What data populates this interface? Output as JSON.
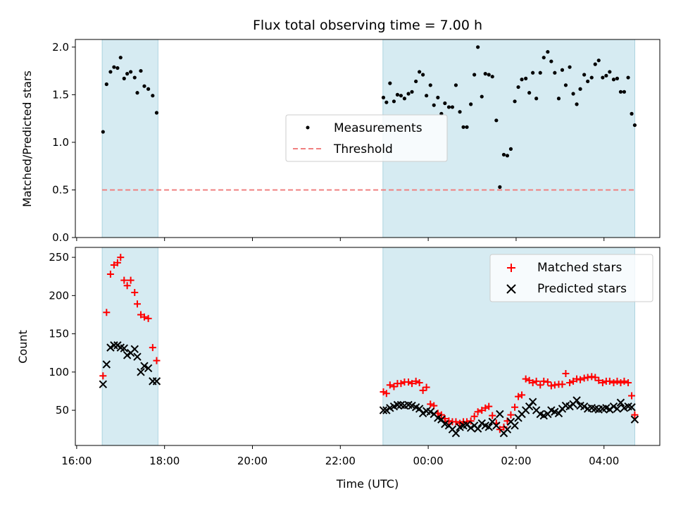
{
  "chart_data": [
    {
      "type": "scatter",
      "title": "Flux total observing time = 7.00 h",
      "ylabel": "Matched/Predicted stars",
      "xlabel": "",
      "xlim": [
        15.97,
        29.27
      ],
      "ylim": [
        0.0,
        2.08
      ],
      "yticks": [
        "0.0",
        "0.5",
        "1.0",
        "1.5",
        "2.0"
      ],
      "shaded_intervals": [
        [
          16.58,
          17.85
        ],
        [
          22.97,
          28.7
        ]
      ],
      "threshold": 0.5,
      "legend": {
        "placement": "center",
        "entries": [
          "Measurements",
          "Threshold"
        ]
      },
      "series": [
        {
          "name": "Measurements",
          "marker": "dot",
          "color": "#000000",
          "x": [
            16.6,
            16.68,
            16.77,
            16.85,
            16.93,
            17.0,
            17.08,
            17.15,
            17.23,
            17.32,
            17.38,
            17.46,
            17.54,
            17.63,
            17.73,
            17.82,
            22.98,
            23.05,
            23.13,
            23.22,
            23.3,
            23.38,
            23.46,
            23.55,
            23.63,
            23.72,
            23.8,
            23.88,
            23.96,
            24.05,
            24.13,
            24.22,
            24.3,
            24.38,
            24.47,
            24.55,
            24.63,
            24.72,
            24.8,
            24.88,
            24.97,
            25.05,
            25.13,
            25.22,
            25.3,
            25.38,
            25.46,
            25.55,
            25.63,
            25.72,
            25.8,
            25.88,
            25.97,
            26.05,
            26.13,
            26.22,
            26.3,
            26.38,
            26.46,
            26.55,
            26.63,
            26.72,
            26.8,
            26.88,
            26.97,
            27.05,
            27.13,
            27.22,
            27.3,
            27.38,
            27.46,
            27.55,
            27.63,
            27.72,
            27.8,
            27.88,
            27.97,
            28.05,
            28.13,
            28.22,
            28.3,
            28.38,
            28.46,
            28.55,
            28.63,
            28.7
          ],
          "y": [
            1.11,
            1.61,
            1.74,
            1.79,
            1.78,
            1.89,
            1.67,
            1.72,
            1.74,
            1.68,
            1.52,
            1.75,
            1.59,
            1.56,
            1.49,
            1.31,
            1.47,
            1.42,
            1.62,
            1.43,
            1.5,
            1.49,
            1.46,
            1.51,
            1.53,
            1.64,
            1.74,
            1.71,
            1.49,
            1.6,
            1.39,
            1.47,
            1.3,
            1.41,
            1.37,
            1.37,
            1.6,
            1.32,
            1.16,
            1.16,
            1.4,
            1.71,
            2.0,
            1.48,
            1.72,
            1.71,
            1.69,
            1.23,
            0.53,
            0.87,
            0.86,
            0.93,
            1.43,
            1.58,
            1.66,
            1.67,
            1.52,
            1.73,
            1.46,
            1.73,
            1.89,
            1.95,
            1.85,
            1.73,
            1.46,
            1.76,
            1.6,
            1.79,
            1.51,
            1.4,
            1.56,
            1.71,
            1.64,
            1.68,
            1.82,
            1.86,
            1.68,
            1.7,
            1.74,
            1.66,
            1.67,
            1.53,
            1.53,
            1.68,
            1.3,
            1.18
          ]
        },
        {
          "name": "Threshold",
          "style": "dashed",
          "color": "#f08080",
          "x": [
            16.58,
            28.7
          ],
          "y": [
            0.5,
            0.5
          ]
        }
      ]
    },
    {
      "type": "scatter",
      "title": "",
      "xlabel": "Time (UTC)",
      "ylabel": "Count",
      "xlim": [
        15.97,
        29.27
      ],
      "ylim": [
        4,
        263
      ],
      "xticks": [
        "16:00",
        "18:00",
        "20:00",
        "22:00",
        "00:00",
        "02:00",
        "04:00"
      ],
      "yticks": [
        "50",
        "100",
        "150",
        "200",
        "250"
      ],
      "shaded_intervals": [
        [
          16.58,
          17.85
        ],
        [
          22.97,
          28.7
        ]
      ],
      "legend": {
        "placement": "top-right",
        "entries": [
          "Matched stars",
          "Predicted stars"
        ]
      },
      "series": [
        {
          "name": "Matched stars",
          "marker": "plus",
          "color": "#ff0000",
          "x": [
            16.6,
            16.68,
            16.77,
            16.85,
            16.93,
            17.0,
            17.08,
            17.15,
            17.23,
            17.32,
            17.38,
            17.46,
            17.54,
            17.63,
            17.73,
            17.82,
            22.98,
            23.05,
            23.13,
            23.22,
            23.3,
            23.38,
            23.46,
            23.55,
            23.63,
            23.72,
            23.8,
            23.88,
            23.96,
            24.05,
            24.13,
            24.22,
            24.3,
            24.38,
            24.47,
            24.55,
            24.63,
            24.72,
            24.8,
            24.88,
            24.97,
            25.05,
            25.13,
            25.22,
            25.3,
            25.38,
            25.46,
            25.55,
            25.63,
            25.72,
            25.8,
            25.88,
            25.97,
            26.05,
            26.13,
            26.22,
            26.3,
            26.38,
            26.46,
            26.55,
            26.63,
            26.72,
            26.8,
            26.88,
            26.97,
            27.05,
            27.13,
            27.22,
            27.3,
            27.38,
            27.46,
            27.55,
            27.63,
            27.72,
            27.8,
            27.88,
            27.97,
            28.05,
            28.13,
            28.22,
            28.3,
            28.38,
            28.46,
            28.55,
            28.63,
            28.7
          ],
          "y": [
            95,
            178,
            228,
            240,
            243,
            250,
            220,
            213,
            220,
            204,
            189,
            175,
            172,
            170,
            132,
            115,
            74,
            72,
            83,
            81,
            85,
            85,
            87,
            87,
            85,
            88,
            86,
            76,
            80,
            58,
            56,
            46,
            44,
            39,
            36,
            35,
            35,
            33,
            35,
            35,
            36,
            42,
            48,
            50,
            53,
            55,
            43,
            33,
            25,
            28,
            36,
            44,
            54,
            68,
            70,
            91,
            89,
            86,
            88,
            83,
            88,
            87,
            82,
            83,
            84,
            84,
            98,
            86,
            88,
            91,
            90,
            92,
            93,
            94,
            93,
            89,
            86,
            88,
            88,
            86,
            88,
            86,
            88,
            86,
            69,
            44
          ]
        },
        {
          "name": "Predicted stars",
          "marker": "x",
          "color": "#000000",
          "x": [
            16.6,
            16.68,
            16.77,
            16.85,
            16.93,
            17.0,
            17.08,
            17.15,
            17.23,
            17.32,
            17.38,
            17.46,
            17.54,
            17.63,
            17.73,
            17.82,
            22.98,
            23.05,
            23.13,
            23.22,
            23.3,
            23.38,
            23.46,
            23.55,
            23.63,
            23.72,
            23.8,
            23.88,
            23.96,
            24.05,
            24.13,
            24.22,
            24.3,
            24.38,
            24.47,
            24.55,
            24.63,
            24.72,
            24.8,
            24.88,
            24.97,
            25.05,
            25.13,
            25.22,
            25.3,
            25.38,
            25.46,
            25.55,
            25.63,
            25.72,
            25.8,
            25.88,
            25.97,
            26.05,
            26.13,
            26.22,
            26.3,
            26.38,
            26.46,
            26.55,
            26.63,
            26.72,
            26.8,
            26.88,
            26.97,
            27.05,
            27.13,
            27.22,
            27.3,
            27.38,
            27.46,
            27.55,
            27.63,
            27.72,
            27.8,
            27.88,
            27.97,
            28.05,
            28.13,
            28.22,
            28.3,
            28.38,
            28.46,
            28.55,
            28.63,
            28.7
          ],
          "y": [
            84,
            110,
            132,
            135,
            135,
            132,
            131,
            122,
            125,
            130,
            120,
            100,
            108,
            105,
            88,
            88,
            50,
            50,
            53,
            55,
            57,
            57,
            56,
            57,
            56,
            54,
            52,
            46,
            49,
            48,
            45,
            40,
            38,
            32,
            30,
            25,
            20,
            28,
            30,
            31,
            27,
            30,
            26,
            33,
            30,
            28,
            35,
            30,
            45,
            20,
            25,
            35,
            30,
            40,
            45,
            50,
            55,
            61,
            50,
            45,
            43,
            45,
            50,
            48,
            46,
            52,
            56,
            55,
            58,
            63,
            56,
            55,
            52,
            53,
            52,
            51,
            52,
            53,
            51,
            55,
            52,
            60,
            53,
            55,
            54,
            38
          ]
        }
      ]
    }
  ]
}
